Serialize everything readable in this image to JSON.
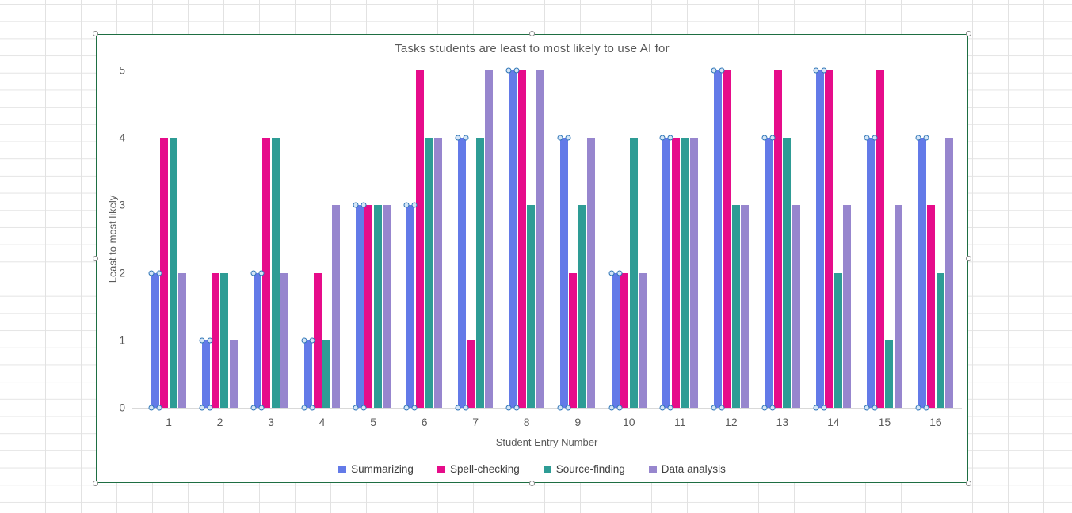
{
  "chart": {
    "title": "Tasks students are least to most likely to use AI for",
    "x_axis_title": "Student Entry Number",
    "y_axis_title": "Least to most likely",
    "border_color": "#1e6e42"
  },
  "chart_data": {
    "type": "bar",
    "title": "Tasks students are least to most likely to use AI for",
    "xlabel": "Student Entry Number",
    "ylabel": "Least to most likely",
    "categories": [
      "1",
      "2",
      "3",
      "4",
      "5",
      "6",
      "7",
      "8",
      "9",
      "10",
      "11",
      "12",
      "13",
      "14",
      "15",
      "16"
    ],
    "series": [
      {
        "name": "Summarizing",
        "color": "#637ae8",
        "values": [
          2,
          1,
          2,
          1,
          3,
          3,
          4,
          5,
          4,
          2,
          4,
          5,
          4,
          5,
          4,
          4
        ]
      },
      {
        "name": "Spell-checking",
        "color": "#e60c8a",
        "values": [
          4,
          2,
          4,
          2,
          3,
          5,
          1,
          5,
          2,
          2,
          4,
          5,
          5,
          5,
          5,
          3
        ]
      },
      {
        "name": "Source-finding",
        "color": "#2e9c95",
        "values": [
          4,
          2,
          4,
          1,
          3,
          4,
          4,
          3,
          3,
          4,
          4,
          3,
          4,
          2,
          1,
          2
        ]
      },
      {
        "name": "Data analysis",
        "color": "#9786ce",
        "values": [
          2,
          1,
          2,
          3,
          3,
          4,
          5,
          5,
          4,
          2,
          4,
          3,
          3,
          3,
          3,
          4
        ]
      }
    ],
    "ylim": [
      0,
      5
    ],
    "yticks": [
      0,
      1,
      2,
      3,
      4,
      5
    ],
    "grid": false,
    "legend_position": "bottom",
    "selected_series": "Summarizing"
  }
}
